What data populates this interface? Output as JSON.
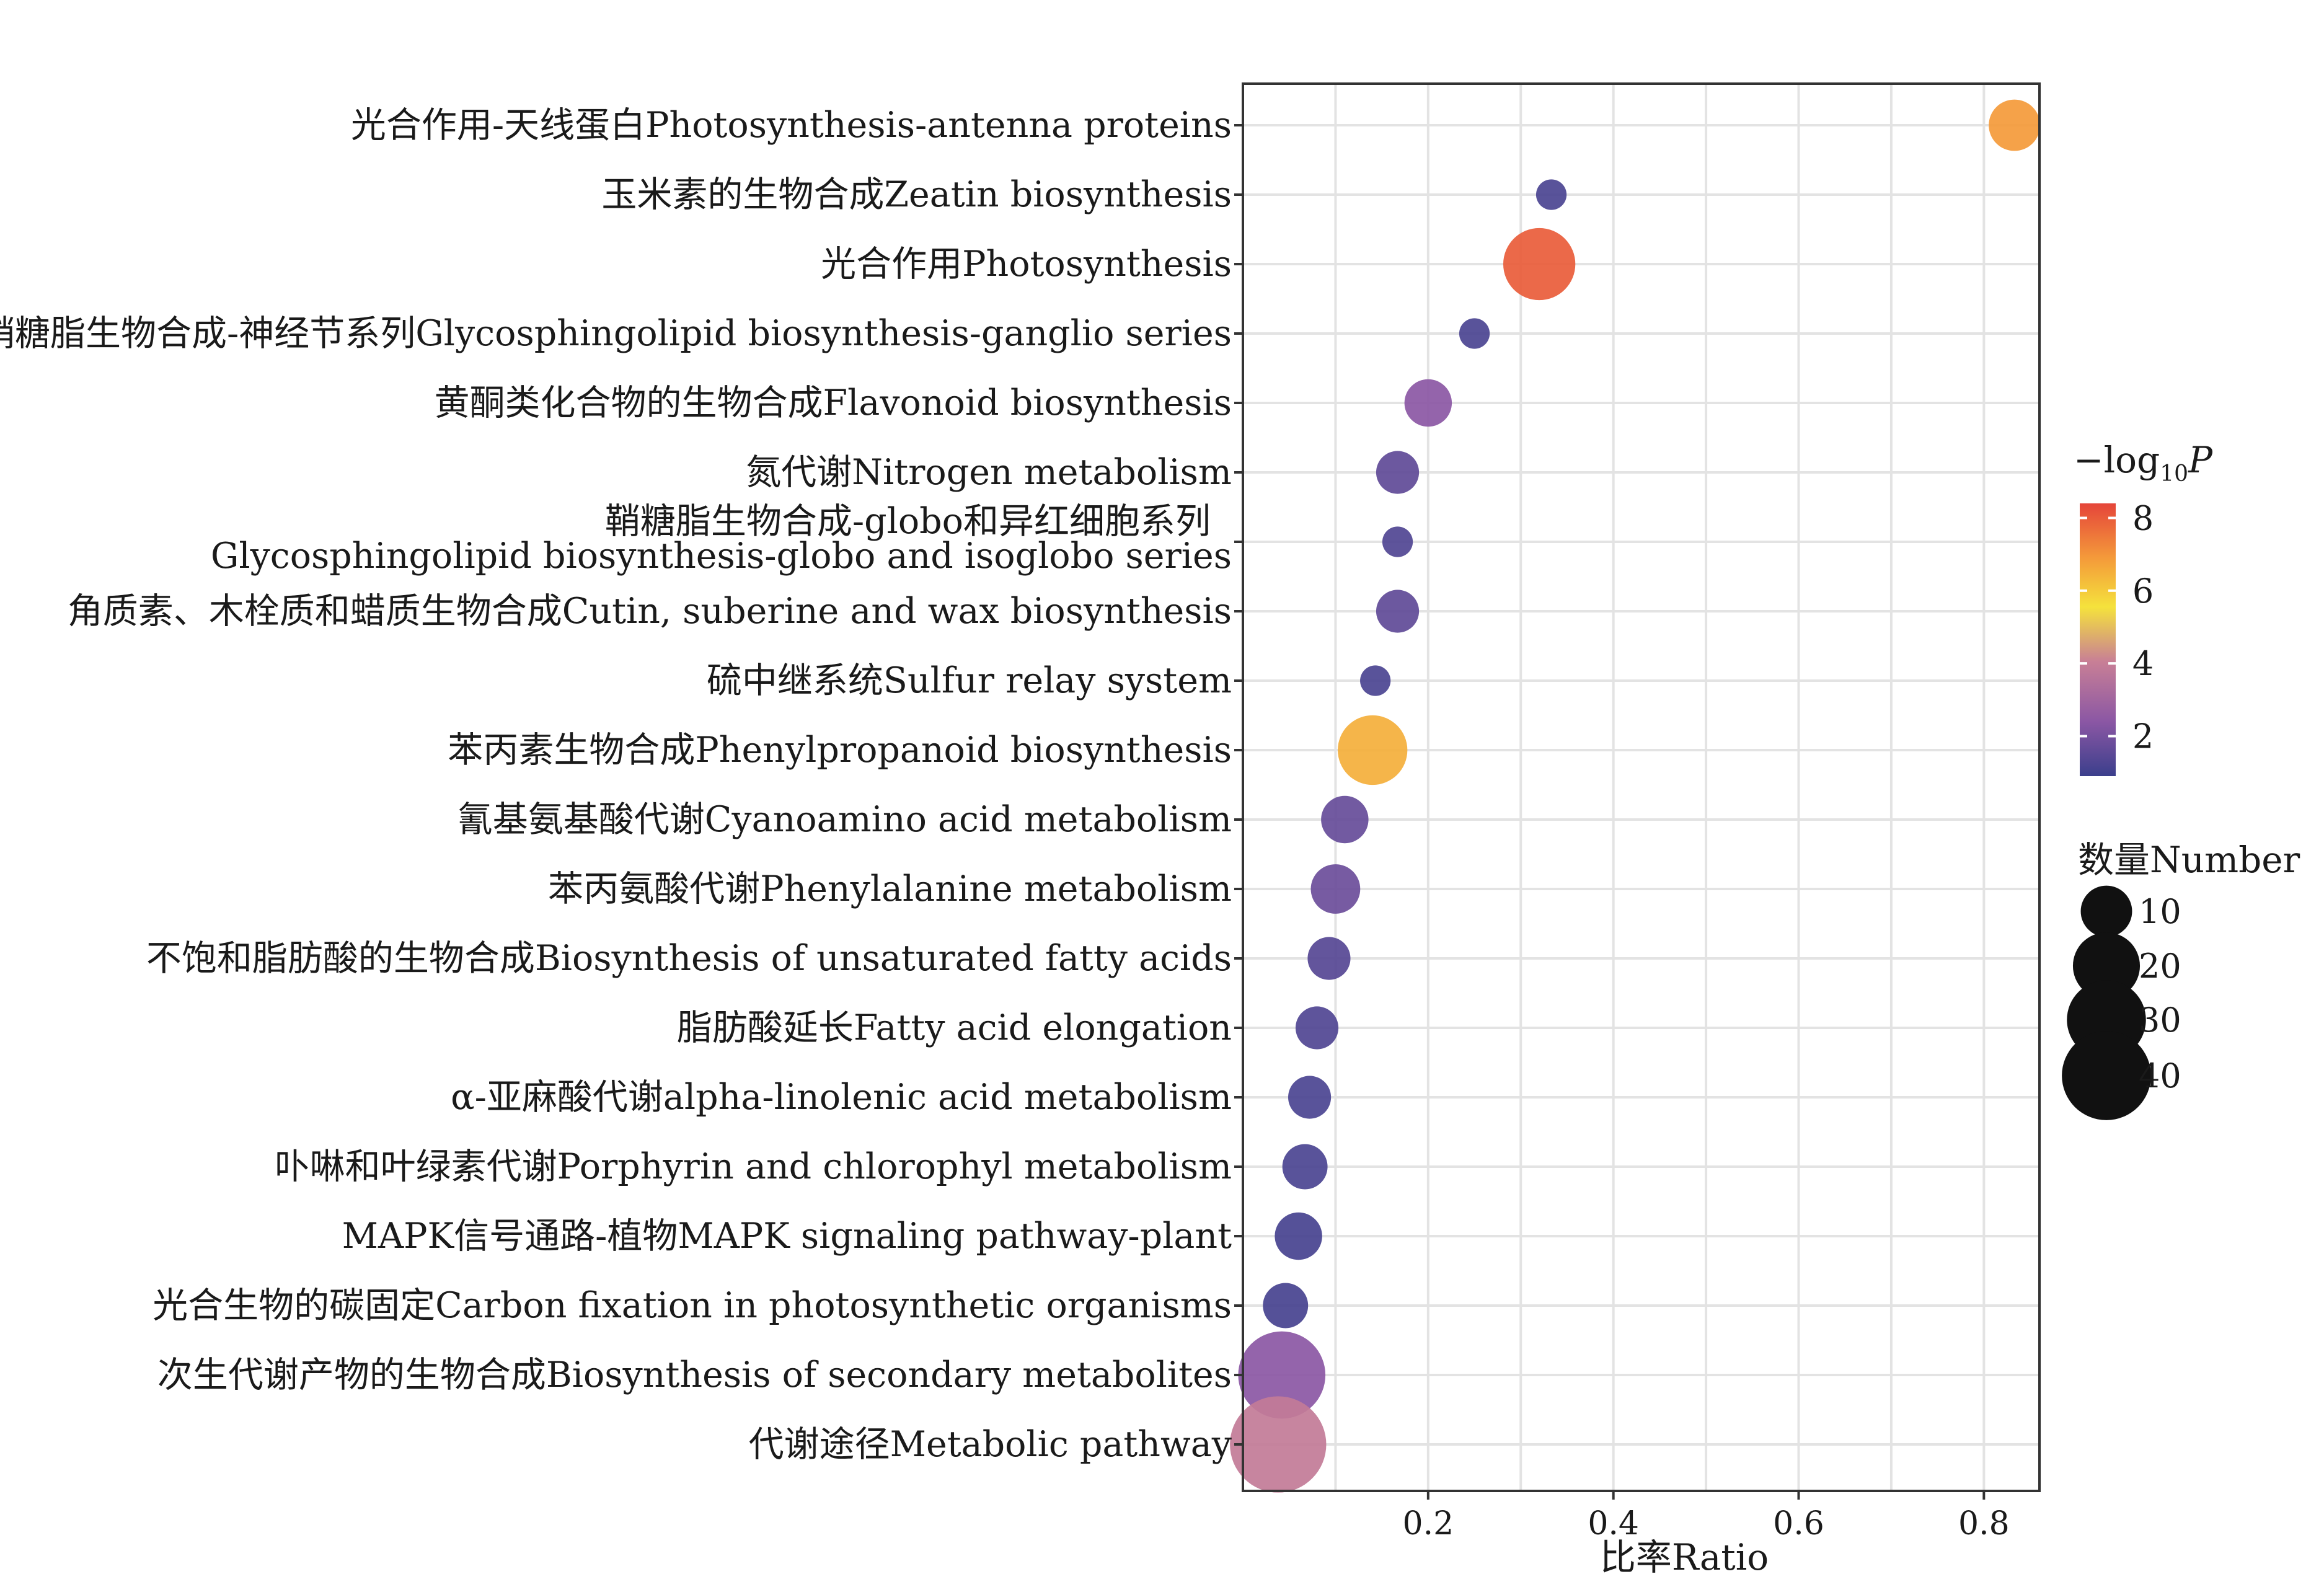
{
  "chart_data": {
    "type": "scatter",
    "xlabel": "比率Ratio",
    "ylabel": "",
    "xlim": [
      0,
      0.86
    ],
    "xticks": [
      0.2,
      0.4,
      0.6,
      0.8
    ],
    "grid": true,
    "legend_placement": "right",
    "color_legend": {
      "title_prefix": "−log",
      "title_sub": "10",
      "title_var": "P",
      "ticks": [
        2,
        4,
        6,
        8
      ],
      "range": [
        0.9,
        8.4
      ],
      "colors": [
        "#3b3f8c",
        "#8b57a4",
        "#c87f96",
        "#f5cc3c",
        "#f49a3a",
        "#e5453a"
      ]
    },
    "size_legend": {
      "title": "数量Number",
      "values": [
        10,
        20,
        30,
        40
      ]
    },
    "points": [
      {
        "label": "光合作用-天线蛋白Photosynthesis-antenna proteins",
        "ratio": 0.833,
        "logp": 6.9,
        "number": 10
      },
      {
        "label": "玉米素的生物合成Zeatin biosynthesis",
        "ratio": 0.333,
        "logp": 1.2,
        "number": 2
      },
      {
        "label": "光合作用Photosynthesis",
        "ratio": 0.32,
        "logp": 8.0,
        "number": 24
      },
      {
        "label": "鞘糖脂生物合成-神经节系列Glycosphingolipid biosynthesis-ganglio series",
        "ratio": 0.25,
        "logp": 1.2,
        "number": 2
      },
      {
        "label": "黄酮类化合物的生物合成Flavonoid biosynthesis",
        "ratio": 0.2,
        "logp": 2.4,
        "number": 8
      },
      {
        "label": "氮代谢Nitrogen metabolism",
        "ratio": 0.167,
        "logp": 1.6,
        "number": 6
      },
      {
        "label": "鞘糖脂生物合成-globo和异红细胞系列",
        "label2": "Glycosphingolipid biosynthesis-globo and isoglobo series",
        "ratio": 0.167,
        "logp": 1.3,
        "number": 2
      },
      {
        "label": "角质素、木栓质和蜡质生物合成Cutin, suberine and wax biosynthesis",
        "ratio": 0.167,
        "logp": 1.6,
        "number": 6
      },
      {
        "label": "硫中继系统Sulfur relay system",
        "ratio": 0.143,
        "logp": 1.2,
        "number": 2
      },
      {
        "label": "苯丙素生物合成Phenylpropanoid biosynthesis",
        "ratio": 0.14,
        "logp": 6.5,
        "number": 22
      },
      {
        "label": "氰基氨基酸代谢Cyanoamino acid metabolism",
        "ratio": 0.11,
        "logp": 1.7,
        "number": 8
      },
      {
        "label": "苯丙氨酸代谢Phenylalanine metabolism",
        "ratio": 0.1,
        "logp": 1.8,
        "number": 9
      },
      {
        "label": "不饱和脂肪酸的生物合成Biosynthesis of unsaturated fatty acids",
        "ratio": 0.093,
        "logp": 1.4,
        "number": 6
      },
      {
        "label": "脂肪酸延长Fatty acid elongation",
        "ratio": 0.08,
        "logp": 1.3,
        "number": 6
      },
      {
        "label": "α-亚麻酸代谢alpha-linolenic acid metabolism",
        "ratio": 0.072,
        "logp": 1.2,
        "number": 6
      },
      {
        "label": "卟啉和叶绿素代谢Porphyrin and chlorophyl metabolism",
        "ratio": 0.067,
        "logp": 1.2,
        "number": 7
      },
      {
        "label": "MAPK信号通路-植物MAPK signaling pathway-plant",
        "ratio": 0.06,
        "logp": 1.1,
        "number": 8
      },
      {
        "label": "光合生物的碳固定Carbon fixation in photosynthetic organisms",
        "ratio": 0.046,
        "logp": 1.1,
        "number": 7
      },
      {
        "label": "次生代谢产物的生物合成Biosynthesis of secondary metabolites",
        "ratio": 0.042,
        "logp": 2.4,
        "number": 38
      },
      {
        "label": "代谢途径Metabolic pathway",
        "ratio": 0.038,
        "logp": 3.9,
        "number": 48
      }
    ]
  }
}
